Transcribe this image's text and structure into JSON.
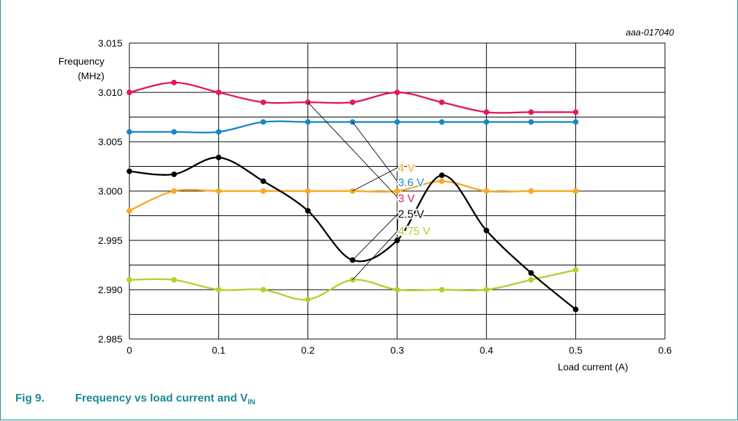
{
  "figure_id": "aaa-017040",
  "caption": {
    "fig_number": "Fig 9.",
    "title": "Frequency vs load current and V",
    "title_sub": "IN"
  },
  "colors": {
    "frame": "#1a8a93",
    "grid": "#000000",
    "caption": "#1a8a93"
  },
  "chart_data": {
    "type": "line",
    "title": "",
    "ylabel_line1": "Frequency",
    "ylabel_line2": "(MHz)",
    "xlabel": "Load current (A)",
    "xlim": [
      0,
      0.6
    ],
    "ylim": [
      2.985,
      3.015
    ],
    "x_ticks": [
      "0",
      "0.1",
      "0.2",
      "0.3",
      "0.4",
      "0.5",
      "0.6"
    ],
    "y_ticks": [
      "2.985",
      "2.990",
      "2.995",
      "3.000",
      "3.005",
      "3.010",
      "3.015"
    ],
    "x_grid": [
      0,
      0.1,
      0.2,
      0.3,
      0.4,
      0.5,
      0.6
    ],
    "y_grid": [
      2.985,
      2.9875,
      2.99,
      2.9925,
      2.995,
      2.9975,
      3.0,
      3.0025,
      3.005,
      3.0075,
      3.01,
      3.0125,
      3.015
    ],
    "grid": true,
    "series": [
      {
        "name": "3 V",
        "color": "#e3175d",
        "x": [
          0,
          0.05,
          0.1,
          0.15,
          0.2,
          0.25,
          0.3,
          0.35,
          0.4,
          0.45,
          0.5
        ],
        "y": [
          3.01,
          3.011,
          3.01,
          3.009,
          3.009,
          3.009,
          3.01,
          3.009,
          3.008,
          3.008,
          3.008
        ]
      },
      {
        "name": "3.6 V",
        "color": "#1b86c6",
        "x": [
          0,
          0.05,
          0.1,
          0.15,
          0.2,
          0.25,
          0.3,
          0.35,
          0.4,
          0.45,
          0.5
        ],
        "y": [
          3.006,
          3.006,
          3.006,
          3.007,
          3.007,
          3.007,
          3.007,
          3.007,
          3.007,
          3.007,
          3.007
        ]
      },
      {
        "name": "4 V",
        "color": "#f7a823",
        "x": [
          0,
          0.05,
          0.1,
          0.15,
          0.2,
          0.25,
          0.3,
          0.35,
          0.4,
          0.45,
          0.5
        ],
        "y": [
          2.998,
          3.0,
          3.0,
          3.0,
          3.0,
          3.0,
          3.0,
          3.001,
          3.0,
          3.0,
          3.0
        ]
      },
      {
        "name": "2.5 V",
        "color": "#000000",
        "x": [
          0,
          0.05,
          0.1,
          0.15,
          0.2,
          0.25,
          0.3,
          0.35,
          0.4,
          0.45,
          0.5
        ],
        "y": [
          3.002,
          3.0017,
          3.0034,
          3.001,
          2.998,
          2.993,
          2.995,
          3.0016,
          2.996,
          2.9917,
          2.988
        ]
      },
      {
        "name": "4.75 V",
        "color": "#b5cf2d",
        "x": [
          0,
          0.05,
          0.1,
          0.15,
          0.2,
          0.25,
          0.3,
          0.35,
          0.4,
          0.45,
          0.5
        ],
        "y": [
          2.991,
          2.991,
          2.99,
          2.99,
          2.989,
          2.991,
          2.99,
          2.99,
          2.99,
          2.991,
          2.992
        ]
      }
    ],
    "annotations": [
      {
        "text": "4 V",
        "color": "#f7a823",
        "x": 0.301,
        "y": 3.0024,
        "targets": [
          [
            0.25,
            3.0
          ]
        ]
      },
      {
        "text": "3.6 V",
        "color": "#1b86c6",
        "x": 0.301,
        "y": 3.0009,
        "targets": [
          [
            0.25,
            3.007
          ]
        ]
      },
      {
        "text": "3 V",
        "color": "#e3175d",
        "x": 0.301,
        "y": 2.9993,
        "targets": [
          [
            0.2,
            3.009
          ]
        ]
      },
      {
        "text": "2.5 V",
        "color": "#000000",
        "x": 0.301,
        "y": 2.9977,
        "targets": [
          [
            0.25,
            2.993
          ],
          [
            0.3,
            2.995
          ]
        ]
      },
      {
        "text": "4.75 V",
        "color": "#b5cf2d",
        "x": 0.301,
        "y": 2.996,
        "targets": [
          [
            0.25,
            2.991
          ]
        ]
      }
    ]
  }
}
